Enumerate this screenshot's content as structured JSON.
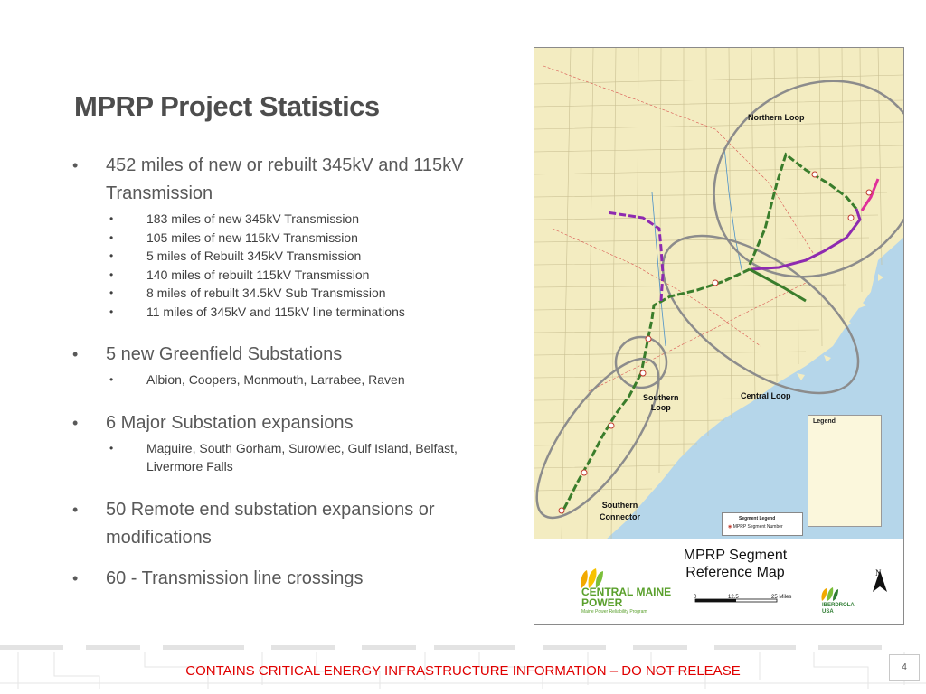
{
  "slide": {
    "title": "MPRP Project Statistics",
    "page_number": "4",
    "footer": "CONTAINS CRITICAL ENERGY INFRASTRUCTURE INFORMATION – DO NOT RELEASE"
  },
  "bullets": [
    {
      "text": "452 miles of new or rebuilt 345kV and 115kV Transmission",
      "sub": [
        "183 miles of new 345kV Transmission",
        "105 miles of new 115kV Transmission",
        "5 miles of Rebuilt 345kV Transmission",
        "140 miles of rebuilt 115kV Transmission",
        "8 miles of rebuilt 34.5kV Sub Transmission",
        "11 miles of 345kV and 115kV line terminations"
      ]
    },
    {
      "text": "5 new Greenfield Substations",
      "sub": [
        "Albion, Coopers, Monmouth, Larrabee, Raven"
      ]
    },
    {
      "text": "6 Major Substation expansions",
      "sub": [
        "Maguire, South Gorham, Surowiec, Gulf Island, Belfast, Livermore Falls"
      ]
    },
    {
      "text": "50 Remote end substation expansions or modifications",
      "sub": []
    },
    {
      "text": "60 - Transmission line crossings",
      "sub": []
    }
  ],
  "map": {
    "region_labels": {
      "northern_loop": "Northern Loop",
      "central_loop": "Central Loop",
      "southern_loop": "Southern\nLoop",
      "southern_connector": "Southern\nConnector"
    },
    "legend_title": "Legend",
    "segment_legend_title": "Segment Legend",
    "segment_legend_row": "MPRP Segment Number",
    "map_title": "MPRP Segment\nReference Map",
    "company_name": "CENTRAL MAINE\nPOWER",
    "company_tagline": "Maine Power Reliability Program",
    "scale": [
      "0",
      "12.5",
      "25 Miles"
    ],
    "partner": "IBERDROLA\nUSA",
    "north": "N",
    "colors": {
      "land": "#f3ecc1",
      "water": "#b5d6ea",
      "loop_outline": "#8c8c8c",
      "new_345": "#3a7d2c",
      "new_115": "#8e2ab0",
      "rebuilt": "#6a8e34"
    }
  }
}
